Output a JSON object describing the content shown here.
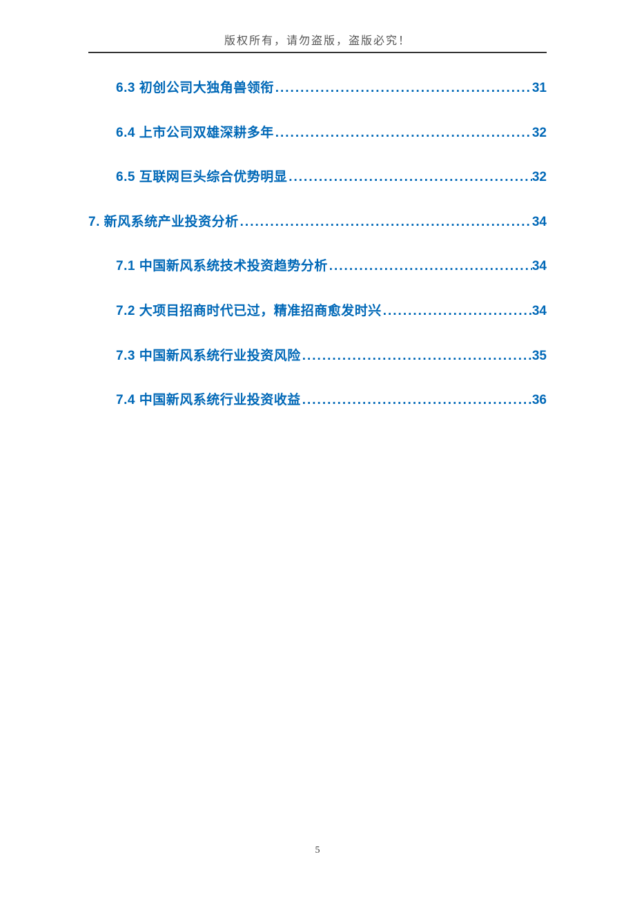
{
  "header": {
    "copyright": "版权所有，请勿盗版，盗版必究！"
  },
  "colors": {
    "link_color": "#0068b7",
    "rule_color": "#333333",
    "header_text_color": "#555555",
    "background": "#ffffff"
  },
  "typography": {
    "toc_fontsize_pt": 14,
    "toc_fontweight": "bold",
    "header_fontsize_pt": 12
  },
  "toc": {
    "entries": [
      {
        "level": 2,
        "label": "6.3  初创公司大独角兽领衔",
        "page": "31"
      },
      {
        "level": 2,
        "label": "6.4  上市公司双雄深耕多年",
        "page": "32"
      },
      {
        "level": 2,
        "label": "6.5  互联网巨头综合优势明显 ",
        "page": "32"
      },
      {
        "level": 1,
        "label": "7.  新风系统产业投资分析 ",
        "page": "34"
      },
      {
        "level": 2,
        "label": "7.1  中国新风系统技术投资趋势分析",
        "page": "34"
      },
      {
        "level": 2,
        "label": "7.2  大项目招商时代已过，精准招商愈发时兴",
        "page": "34"
      },
      {
        "level": 2,
        "label": "7.3  中国新风系统行业投资风险",
        "page": "35"
      },
      {
        "level": 2,
        "label": "7.4  中国新风系统行业投资收益",
        "page": "36"
      }
    ]
  },
  "footer": {
    "page_number": "5"
  }
}
